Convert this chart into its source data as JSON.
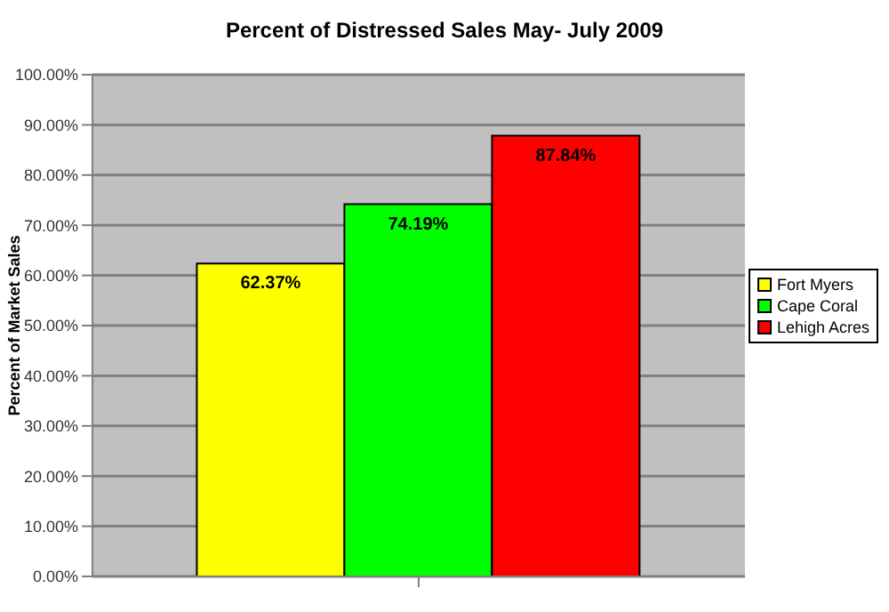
{
  "chart_data": {
    "type": "bar",
    "title": "Percent of Distressed Sales May- July 2009",
    "ylabel": "Percent of Market Sales",
    "categories": [
      null
    ],
    "series": [
      {
        "name": "Fort Myers",
        "color": "#ffff00",
        "values": [
          62.37
        ],
        "value_labels": [
          "62.37%"
        ]
      },
      {
        "name": "Cape Coral",
        "color": "#00ff00",
        "values": [
          74.19
        ],
        "value_labels": [
          "74.19%"
        ]
      },
      {
        "name": "Lehigh Acres",
        "color": "#ff0000",
        "values": [
          87.84
        ],
        "value_labels": [
          "87.84%"
        ]
      }
    ],
    "ylim": [
      0,
      100
    ],
    "yticks": [
      {
        "value": 0,
        "label": "0.00%"
      },
      {
        "value": 10,
        "label": "10.00%"
      },
      {
        "value": 20,
        "label": "20.00%"
      },
      {
        "value": 30,
        "label": "30.00%"
      },
      {
        "value": 40,
        "label": "40.00%"
      },
      {
        "value": 50,
        "label": "50.00%"
      },
      {
        "value": 60,
        "label": "60.00%"
      },
      {
        "value": 70,
        "label": "70.00%"
      },
      {
        "value": 80,
        "label": "80.00%"
      },
      {
        "value": 90,
        "label": "90.00%"
      },
      {
        "value": 100,
        "label": "100.00%"
      }
    ],
    "grid": "y",
    "legend": "right"
  }
}
